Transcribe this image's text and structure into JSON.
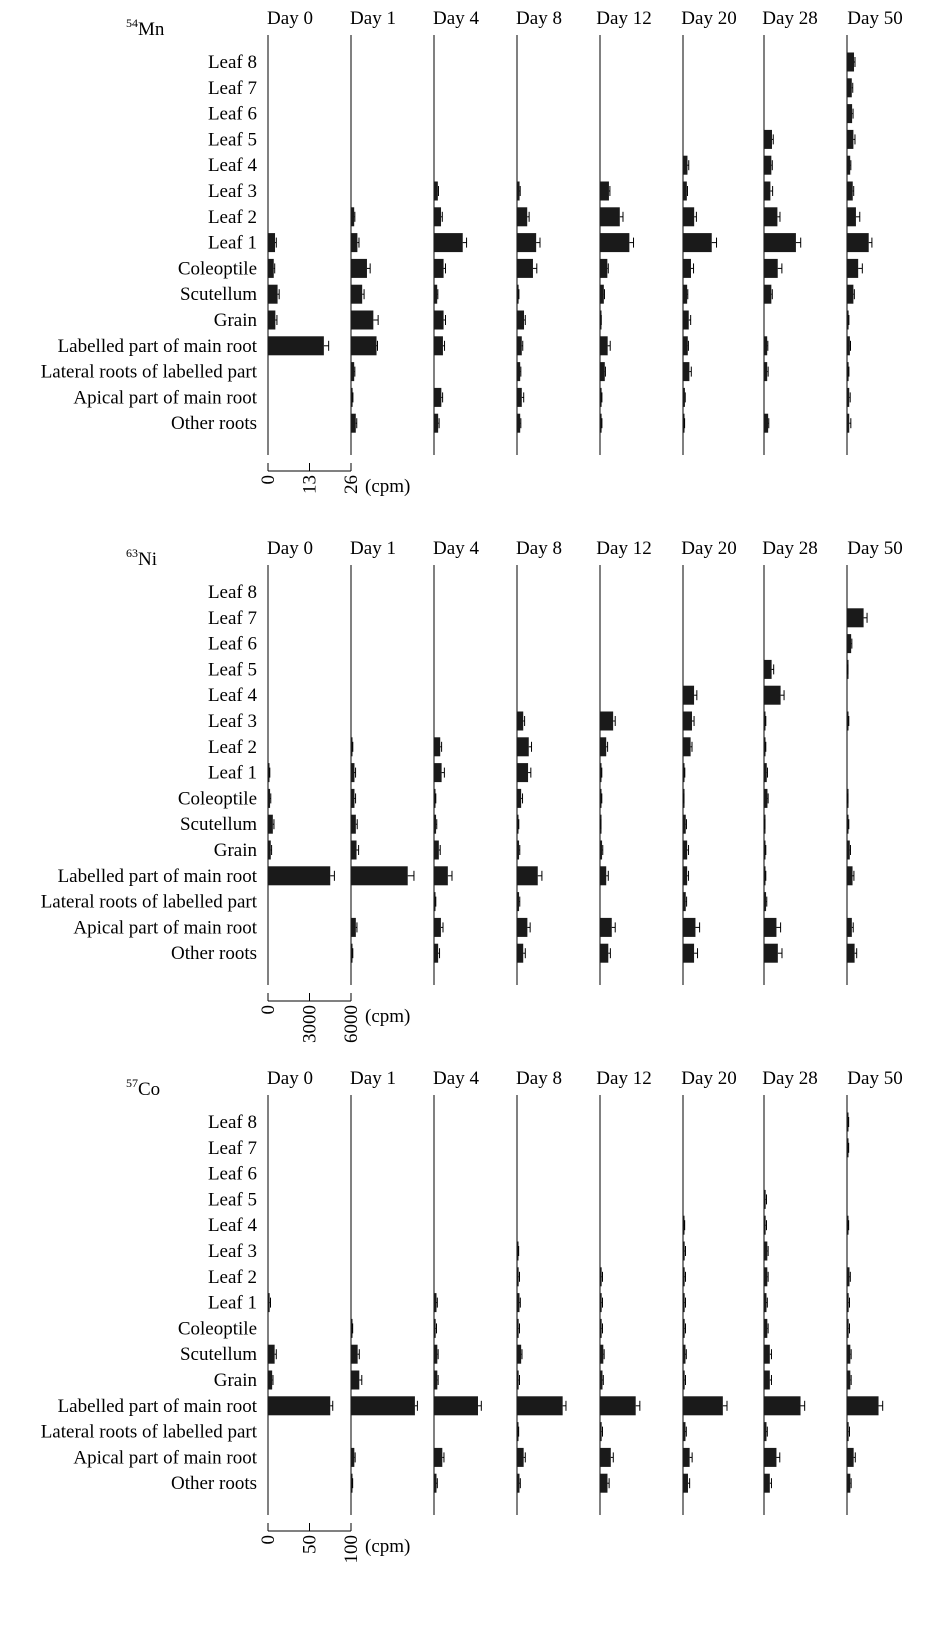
{
  "chart_data": [
    {
      "type": "bar",
      "orientation": "horizontal",
      "title": "",
      "isotope_label": {
        "mass": "54",
        "symbol": "Mn"
      },
      "xlabel": "(cpm)",
      "ylabel": "",
      "days": [
        "Day 0",
        "Day 1",
        "Day 4",
        "Day 8",
        "Day 12",
        "Day 20",
        "Day 28",
        "Day 50"
      ],
      "categories": [
        "Leaf 8",
        "Leaf 7",
        "Leaf 6",
        "Leaf 5",
        "Leaf 4",
        "Leaf 3",
        "Leaf 2",
        "Leaf 1",
        "Coleoptile",
        "Scutellum",
        "Grain",
        "Labelled part of main root",
        "Lateral roots of labelled part",
        "Apical part of main root",
        "Other roots"
      ],
      "xlim": [
        0,
        26
      ],
      "x_ticks": [
        "0",
        "13",
        "26"
      ],
      "series": [
        {
          "name": "Day 0",
          "values": [
            0,
            0,
            0,
            0,
            0,
            0,
            0,
            2.2,
            1.8,
            3.0,
            2.3,
            17.5,
            0,
            0,
            0
          ],
          "errors": [
            0,
            0,
            0,
            0,
            0,
            0,
            0,
            0.4,
            0.3,
            0.5,
            0.5,
            1.5,
            0,
            0,
            0
          ]
        },
        {
          "name": "Day 1",
          "values": [
            0,
            0,
            0,
            0,
            0,
            0,
            1.0,
            2.0,
            5.0,
            3.5,
            7.0,
            8.0,
            1.0,
            0.5,
            1.5
          ],
          "errors": [
            0,
            0,
            0,
            0,
            0,
            0,
            0.2,
            0.5,
            1.0,
            0.6,
            1.5,
            0.3,
            0.2,
            0.1,
            0.3
          ]
        },
        {
          "name": "Day 4",
          "values": [
            0,
            0,
            0,
            0,
            0,
            1.2,
            2.2,
            9.0,
            3.0,
            1.0,
            3.0,
            2.8,
            0,
            2.3,
            1.3
          ],
          "errors": [
            0,
            0,
            0,
            0,
            0,
            0.2,
            0.4,
            1.2,
            0.6,
            0.2,
            0.6,
            0.5,
            0,
            0.4,
            0.3
          ]
        },
        {
          "name": "Day 8",
          "values": [
            0,
            0,
            0,
            0,
            0,
            0.8,
            3.2,
            6.0,
            5.0,
            0.5,
            2.2,
            1.5,
            1.0,
            1.5,
            1.0
          ],
          "errors": [
            0,
            0,
            0,
            0,
            0,
            0.2,
            0.6,
            1.2,
            1.2,
            0.1,
            0.4,
            0.3,
            0.2,
            0.6,
            0.2
          ]
        },
        {
          "name": "Day 12",
          "values": [
            0,
            0,
            0,
            0,
            0,
            2.8,
            6.2,
            9.2,
            2.3,
            1.2,
            0.3,
            2.4,
            1.5,
            0.5,
            0.5
          ],
          "errors": [
            0,
            0,
            0,
            0,
            0,
            0.3,
            1.0,
            1.3,
            0.3,
            0.2,
            0.1,
            0.8,
            0.2,
            0.1,
            0.1
          ]
        },
        {
          "name": "Day 20",
          "values": [
            0,
            0,
            0,
            0,
            1.4,
            1.2,
            3.5,
            9.0,
            2.5,
            1.3,
            1.8,
            1.5,
            2.0,
            0.6,
            0.4
          ],
          "errors": [
            0,
            0,
            0,
            0,
            0.4,
            0.2,
            0.7,
            1.5,
            0.8,
            0.2,
            0.6,
            0.2,
            0.6,
            0.1,
            0.1
          ]
        },
        {
          "name": "Day 28",
          "values": [
            0,
            0,
            0,
            2.5,
            2.3,
            2.0,
            4.2,
            10.0,
            4.3,
            2.3,
            0,
            1.0,
            1.0,
            0,
            1.3
          ],
          "errors": [
            0,
            0,
            0,
            0.4,
            0.3,
            0.7,
            0.8,
            1.5,
            1.3,
            0.3,
            0,
            0.2,
            0.3,
            0,
            0.2
          ]
        },
        {
          "name": "Day 50",
          "values": [
            2.2,
            1.5,
            1.6,
            2.0,
            1.0,
            1.8,
            2.8,
            6.8,
            3.5,
            2.0,
            0.5,
            0.9,
            0.5,
            0.7,
            0.7
          ],
          "errors": [
            0.3,
            0.3,
            0.3,
            0.5,
            0.2,
            0.3,
            1.2,
            1.0,
            1.3,
            0.3,
            0.1,
            0.2,
            0.1,
            0.3,
            0.5
          ]
        }
      ]
    },
    {
      "type": "bar",
      "orientation": "horizontal",
      "title": "",
      "isotope_label": {
        "mass": "63",
        "symbol": "Ni"
      },
      "xlabel": "(cpm)",
      "ylabel": "",
      "days": [
        "Day 0",
        "Day 1",
        "Day 4",
        "Day 8",
        "Day 12",
        "Day 20",
        "Day 28",
        "Day 50"
      ],
      "categories": [
        "Leaf 8",
        "Leaf 7",
        "Leaf 6",
        "Leaf 5",
        "Leaf 4",
        "Leaf 3",
        "Leaf 2",
        "Leaf 1",
        "Coleoptile",
        "Scutellum",
        "Grain",
        "Labelled part of main root",
        "Lateral roots of labelled part",
        "Apical part of main root",
        "Other roots"
      ],
      "xlim": [
        0,
        6000
      ],
      "x_ticks": [
        "0",
        "3000",
        "6000"
      ],
      "series": [
        {
          "name": "Day 0",
          "values": [
            0,
            0,
            0,
            0,
            0,
            0,
            0,
            100,
            150,
            350,
            200,
            4500,
            0,
            0,
            0
          ],
          "errors": [
            0,
            0,
            0,
            0,
            0,
            0,
            0,
            30,
            50,
            80,
            60,
            300,
            0,
            0,
            0
          ]
        },
        {
          "name": "Day 1",
          "values": [
            0,
            0,
            0,
            0,
            0,
            0,
            100,
            250,
            250,
            350,
            400,
            4100,
            0,
            350,
            100
          ],
          "errors": [
            0,
            0,
            0,
            0,
            0,
            0,
            30,
            80,
            80,
            100,
            150,
            450,
            0,
            80,
            30
          ]
        },
        {
          "name": "Day 4",
          "values": [
            0,
            0,
            0,
            0,
            0,
            0,
            450,
            550,
            100,
            150,
            350,
            1000,
            100,
            500,
            300
          ],
          "errors": [
            0,
            0,
            0,
            0,
            0,
            0,
            100,
            200,
            30,
            50,
            100,
            300,
            30,
            150,
            100
          ]
        },
        {
          "name": "Day 8",
          "values": [
            0,
            0,
            0,
            0,
            0,
            450,
            850,
            800,
            300,
            100,
            150,
            1500,
            150,
            750,
            450
          ],
          "errors": [
            0,
            0,
            0,
            0,
            0,
            100,
            200,
            200,
            100,
            30,
            50,
            300,
            50,
            200,
            150
          ]
        },
        {
          "name": "Day 12",
          "values": [
            0,
            0,
            0,
            0,
            0,
            950,
            450,
            100,
            100,
            50,
            150,
            450,
            0,
            850,
            600
          ],
          "errors": [
            0,
            0,
            0,
            0,
            0,
            150,
            100,
            30,
            30,
            20,
            50,
            150,
            0,
            250,
            150
          ]
        },
        {
          "name": "Day 20",
          "values": [
            0,
            0,
            0,
            0,
            800,
            650,
            550,
            100,
            50,
            200,
            300,
            300,
            200,
            900,
            800
          ],
          "errors": [
            0,
            0,
            0,
            0,
            200,
            150,
            100,
            30,
            20,
            50,
            100,
            100,
            60,
            300,
            250
          ]
        },
        {
          "name": "Day 28",
          "values": [
            0,
            0,
            0,
            550,
            1200,
            100,
            100,
            200,
            250,
            50,
            100,
            100,
            150,
            900,
            1000
          ],
          "errors": [
            0,
            0,
            0,
            150,
            250,
            30,
            30,
            50,
            50,
            20,
            30,
            30,
            50,
            300,
            300
          ]
        },
        {
          "name": "Day 50",
          "values": [
            0,
            1200,
            300,
            50,
            0,
            100,
            0,
            0,
            50,
            100,
            200,
            400,
            0,
            350,
            550
          ],
          "errors": [
            0,
            250,
            50,
            20,
            0,
            30,
            0,
            0,
            20,
            30,
            50,
            100,
            0,
            100,
            150
          ]
        }
      ]
    },
    {
      "type": "bar",
      "orientation": "horizontal",
      "title": "",
      "isotope_label": {
        "mass": "57",
        "symbol": "Co"
      },
      "xlabel": "(cpm)",
      "ylabel": "",
      "days": [
        "Day 0",
        "Day 1",
        "Day 4",
        "Day 8",
        "Day 12",
        "Day 20",
        "Day 28",
        "Day 50"
      ],
      "categories": [
        "Leaf 8",
        "Leaf 7",
        "Leaf 6",
        "Leaf 5",
        "Leaf 4",
        "Leaf 3",
        "Leaf 2",
        "Leaf 1",
        "Coleoptile",
        "Scutellum",
        "Grain",
        "Labelled part of main root",
        "Lateral roots of labelled part",
        "Apical part of main root",
        "Other roots"
      ],
      "xlim": [
        0,
        100
      ],
      "x_ticks": [
        "0",
        "50",
        "100"
      ],
      "series": [
        {
          "name": "Day 0",
          "values": [
            0,
            0,
            0,
            0,
            0,
            0,
            0,
            2,
            0,
            8,
            5,
            75,
            0,
            0,
            0
          ],
          "errors": [
            0,
            0,
            0,
            0,
            0,
            0,
            0,
            1,
            0,
            2,
            1,
            3,
            0,
            0,
            0
          ]
        },
        {
          "name": "Day 1",
          "values": [
            0,
            0,
            0,
            0,
            0,
            0,
            0,
            0,
            1,
            8,
            10,
            77,
            0,
            4,
            1
          ],
          "errors": [
            0,
            0,
            0,
            0,
            0,
            0,
            0,
            0,
            1,
            2,
            3,
            3,
            0,
            1,
            1
          ]
        },
        {
          "name": "Day 4",
          "values": [
            0,
            0,
            0,
            0,
            0,
            0,
            0,
            3,
            2,
            4,
            4,
            53,
            0,
            10,
            3
          ],
          "errors": [
            0,
            0,
            0,
            0,
            0,
            0,
            0,
            1,
            1,
            1,
            1,
            4,
            0,
            2,
            1
          ]
        },
        {
          "name": "Day 8",
          "values": [
            0,
            0,
            0,
            0,
            0,
            1,
            2,
            3,
            2,
            5,
            2,
            55,
            1,
            8,
            3
          ],
          "errors": [
            0,
            0,
            0,
            0,
            0,
            1,
            1,
            1,
            1,
            1,
            1,
            4,
            1,
            2,
            1
          ]
        },
        {
          "name": "Day 12",
          "values": [
            0,
            0,
            0,
            0,
            0,
            0,
            2,
            2,
            2,
            4,
            3,
            43,
            2,
            13,
            9
          ],
          "errors": [
            0,
            0,
            0,
            0,
            0,
            0,
            1,
            1,
            1,
            1,
            1,
            5,
            1,
            3,
            2
          ]
        },
        {
          "name": "Day 20",
          "values": [
            0,
            0,
            0,
            0,
            1,
            2,
            2,
            2,
            2,
            3,
            2,
            48,
            3,
            8,
            6
          ],
          "errors": [
            0,
            0,
            0,
            0,
            1,
            1,
            1,
            1,
            1,
            1,
            1,
            5,
            1,
            3,
            2
          ]
        },
        {
          "name": "Day 28",
          "values": [
            0,
            0,
            0,
            2,
            2,
            4,
            4,
            3,
            4,
            7,
            7,
            44,
            3,
            15,
            7
          ],
          "errors": [
            0,
            0,
            0,
            1,
            1,
            1,
            1,
            1,
            1,
            2,
            2,
            5,
            1,
            4,
            2
          ]
        },
        {
          "name": "Day 50",
          "values": [
            1,
            1,
            0,
            0,
            1,
            0,
            3,
            2,
            2,
            4,
            4,
            38,
            2,
            8,
            4
          ],
          "errors": [
            1,
            1,
            0,
            0,
            1,
            0,
            1,
            1,
            1,
            1,
            1,
            5,
            1,
            2,
            1
          ]
        }
      ]
    }
  ]
}
